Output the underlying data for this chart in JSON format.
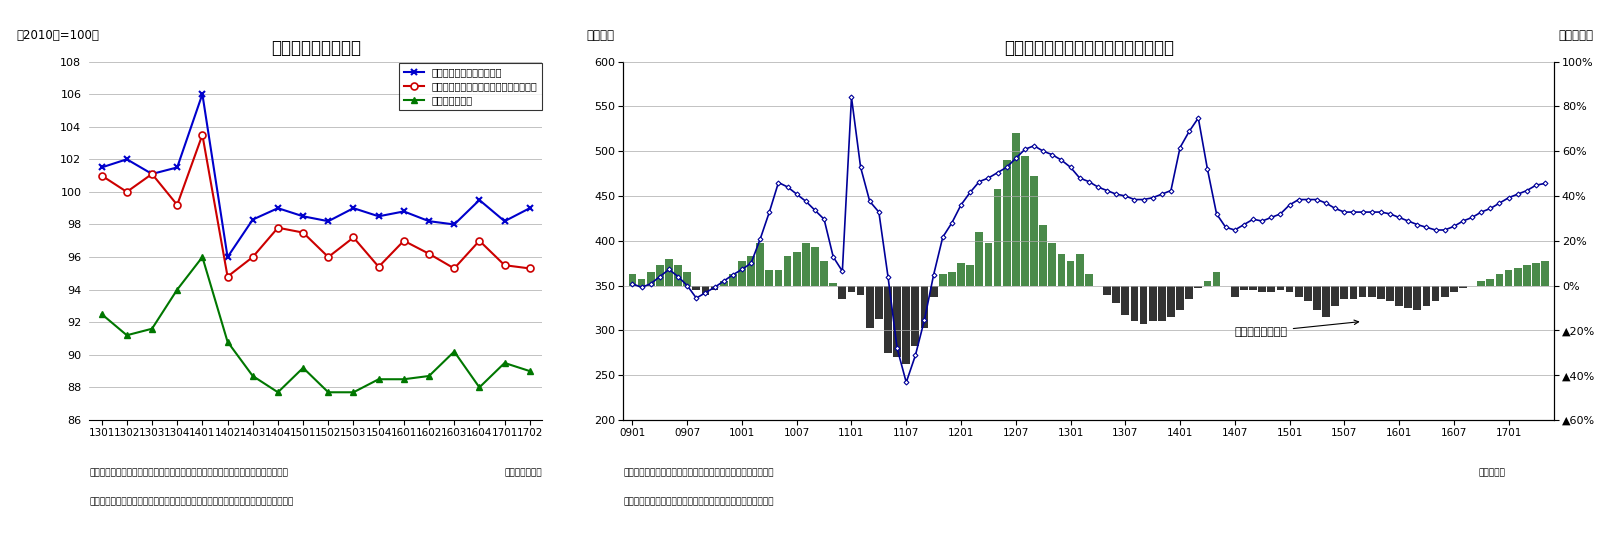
{
  "chart1": {
    "title": "消費関連指標の推移",
    "unit_label": "（2010年=100）",
    "period_label": "（年・四半期）",
    "ylim": [
      86,
      108
    ],
    "yticks": [
      86,
      88,
      90,
      92,
      94,
      96,
      98,
      100,
      102,
      104,
      106,
      108
    ],
    "categories": [
      "1301",
      "1302",
      "1303",
      "1304",
      "1401",
      "1402",
      "1403",
      "1404",
      "1501",
      "1502",
      "1503",
      "1504",
      "1601",
      "1602",
      "1603",
      "1604",
      "1701",
      "1702"
    ],
    "retail_label": "小売業販売額指数（実質）",
    "retail_color": "#0000CC",
    "retail_values": [
      101.5,
      102.0,
      101.1,
      101.5,
      106.0,
      96.0,
      98.3,
      99.0,
      98.5,
      98.2,
      99.0,
      98.5,
      98.8,
      98.2,
      98.0,
      99.5,
      98.2,
      99.0
    ],
    "household_label": "家計調査・消費水準指数（除く住居等）",
    "household_color": "#CC0000",
    "household_values": [
      101.0,
      100.0,
      101.1,
      99.2,
      103.5,
      94.8,
      96.0,
      97.8,
      97.5,
      96.0,
      97.2,
      95.4,
      97.0,
      96.2,
      95.3,
      97.0,
      95.5,
      95.3
    ],
    "shipment_label": "消費財出荷指数",
    "shipment_color": "#007700",
    "shipment_values": [
      92.5,
      91.2,
      91.6,
      94.0,
      96.0,
      90.8,
      88.7,
      87.7,
      89.2,
      87.7,
      87.7,
      88.5,
      88.5,
      88.7,
      90.2,
      88.0,
      89.5,
      89.0
    ],
    "note1": "（注）小売業販売額指数は消費者物価指数（持家の帰属家賃を除く総合）で実質化",
    "note1_right": "（年・四半期）",
    "note2": "（資料）総務省統計局「家計調査」、経済産業省「商業動態統計」、「鉱工業指数」"
  },
  "chart2": {
    "title": "新車販売台数（含む軽乗用車）の推移",
    "unit_label_left": "（万台）",
    "unit_label_right": "（前年比）",
    "period_label": "（年・月）",
    "ylim_left": [
      200,
      600
    ],
    "ylim_right": [
      -0.6,
      1.0
    ],
    "yticks_left": [
      200,
      250,
      300,
      350,
      400,
      450,
      500,
      550,
      600
    ],
    "ytick_labels_right": [
      "▲60%",
      "▲40%",
      "▲20%",
      "0%",
      "20%",
      "40%",
      "60%",
      "80%",
      "100%"
    ],
    "yticks_right": [
      -0.6,
      -0.4,
      -0.2,
      0.0,
      0.2,
      0.4,
      0.6,
      0.8,
      1.0
    ],
    "x_tick_labels": [
      "0901",
      "0907",
      "1001",
      "1007",
      "1101",
      "1107",
      "1201",
      "1207",
      "1301",
      "1307",
      "1401",
      "1407",
      "1501",
      "1507",
      "1601",
      "1607",
      "1701"
    ],
    "x_tick_positions": [
      0,
      6,
      12,
      18,
      24,
      30,
      36,
      42,
      48,
      54,
      60,
      66,
      72,
      78,
      84,
      90,
      96
    ],
    "bar_color": "#333333",
    "bar_color_green": "#4a8a4a",
    "line_color": "#000099",
    "annotation_text": "前年比（右目盛）",
    "note1": "（注）季節調整済・年率換算値（季節調整は当研究所による）",
    "note1_right": "（年・月）",
    "note2": "（資料）日本自動車販売協会連合会、全国軽自動車協会連合会"
  }
}
